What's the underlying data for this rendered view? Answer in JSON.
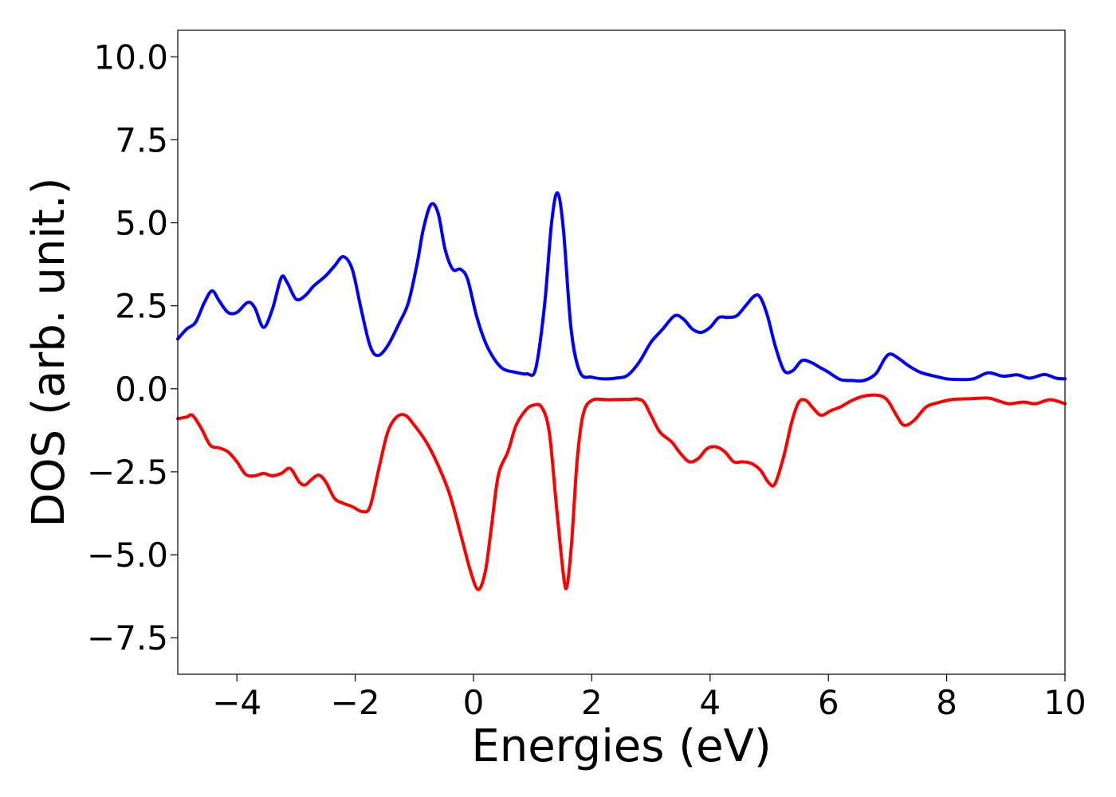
{
  "chart_data": {
    "type": "line",
    "title": "",
    "xlabel": "Energies (eV)",
    "ylabel": "DOS (arb. unit.)",
    "xlim": [
      -5,
      10
    ],
    "ylim": [
      -8.6,
      10.8
    ],
    "grid": false,
    "legend": "none",
    "x_ticks": [
      -4,
      -2,
      0,
      2,
      4,
      6,
      8,
      10
    ],
    "x_tick_labels": [
      "−4",
      "−2",
      "0",
      "2",
      "4",
      "6",
      "8",
      "10"
    ],
    "y_ticks": [
      10.0,
      7.5,
      5.0,
      2.5,
      0.0,
      -2.5,
      -5.0,
      -7.5
    ],
    "y_tick_labels": [
      "10.0",
      "7.5",
      "5.0",
      "2.5",
      "0.0",
      "−2.5",
      "−5.0",
      "−7.5"
    ],
    "series": [
      {
        "color": "#0000ff",
        "points": [
          [
            -5.0,
            1.5
          ],
          [
            -4.85,
            1.8
          ],
          [
            -4.7,
            2.0
          ],
          [
            -4.55,
            2.6
          ],
          [
            -4.42,
            2.95
          ],
          [
            -4.3,
            2.65
          ],
          [
            -4.15,
            2.3
          ],
          [
            -4.0,
            2.3
          ],
          [
            -3.82,
            2.6
          ],
          [
            -3.7,
            2.45
          ],
          [
            -3.55,
            1.85
          ],
          [
            -3.4,
            2.4
          ],
          [
            -3.25,
            3.35
          ],
          [
            -3.15,
            3.2
          ],
          [
            -3.0,
            2.7
          ],
          [
            -2.85,
            2.8
          ],
          [
            -2.7,
            3.1
          ],
          [
            -2.5,
            3.4
          ],
          [
            -2.35,
            3.7
          ],
          [
            -2.2,
            3.98
          ],
          [
            -2.05,
            3.6
          ],
          [
            -1.9,
            2.4
          ],
          [
            -1.75,
            1.3
          ],
          [
            -1.62,
            1.0
          ],
          [
            -1.45,
            1.3
          ],
          [
            -1.25,
            2.0
          ],
          [
            -1.1,
            2.6
          ],
          [
            -0.95,
            3.8
          ],
          [
            -0.85,
            4.8
          ],
          [
            -0.72,
            5.55
          ],
          [
            -0.6,
            5.3
          ],
          [
            -0.48,
            4.2
          ],
          [
            -0.35,
            3.6
          ],
          [
            -0.22,
            3.6
          ],
          [
            -0.1,
            3.3
          ],
          [
            0.05,
            2.2
          ],
          [
            0.2,
            1.4
          ],
          [
            0.35,
            0.9
          ],
          [
            0.5,
            0.6
          ],
          [
            0.7,
            0.5
          ],
          [
            0.9,
            0.45
          ],
          [
            1.05,
            0.6
          ],
          [
            1.2,
            2.5
          ],
          [
            1.32,
            5.0
          ],
          [
            1.42,
            5.9
          ],
          [
            1.52,
            4.8
          ],
          [
            1.65,
            1.8
          ],
          [
            1.8,
            0.5
          ],
          [
            2.0,
            0.35
          ],
          [
            2.2,
            0.3
          ],
          [
            2.4,
            0.32
          ],
          [
            2.6,
            0.4
          ],
          [
            2.8,
            0.8
          ],
          [
            3.0,
            1.4
          ],
          [
            3.2,
            1.8
          ],
          [
            3.4,
            2.2
          ],
          [
            3.55,
            2.1
          ],
          [
            3.7,
            1.8
          ],
          [
            3.85,
            1.7
          ],
          [
            4.0,
            1.85
          ],
          [
            4.15,
            2.15
          ],
          [
            4.3,
            2.15
          ],
          [
            4.45,
            2.2
          ],
          [
            4.6,
            2.5
          ],
          [
            4.75,
            2.8
          ],
          [
            4.85,
            2.75
          ],
          [
            4.97,
            2.2
          ],
          [
            5.1,
            1.3
          ],
          [
            5.25,
            0.55
          ],
          [
            5.4,
            0.55
          ],
          [
            5.55,
            0.85
          ],
          [
            5.7,
            0.8
          ],
          [
            5.85,
            0.65
          ],
          [
            6.0,
            0.5
          ],
          [
            6.2,
            0.28
          ],
          [
            6.4,
            0.25
          ],
          [
            6.6,
            0.25
          ],
          [
            6.8,
            0.45
          ],
          [
            6.95,
            0.9
          ],
          [
            7.05,
            1.05
          ],
          [
            7.2,
            0.9
          ],
          [
            7.35,
            0.7
          ],
          [
            7.55,
            0.5
          ],
          [
            7.75,
            0.4
          ],
          [
            8.0,
            0.3
          ],
          [
            8.2,
            0.28
          ],
          [
            8.45,
            0.3
          ],
          [
            8.7,
            0.48
          ],
          [
            8.95,
            0.38
          ],
          [
            9.2,
            0.42
          ],
          [
            9.4,
            0.32
          ],
          [
            9.65,
            0.43
          ],
          [
            9.85,
            0.32
          ],
          [
            10.0,
            0.3
          ]
        ]
      },
      {
        "color": "#ff0000",
        "points": [
          [
            -5.0,
            -0.9
          ],
          [
            -4.85,
            -0.85
          ],
          [
            -4.75,
            -0.8
          ],
          [
            -4.6,
            -1.2
          ],
          [
            -4.45,
            -1.7
          ],
          [
            -4.3,
            -1.78
          ],
          [
            -4.15,
            -1.9
          ],
          [
            -4.0,
            -2.2
          ],
          [
            -3.85,
            -2.58
          ],
          [
            -3.7,
            -2.62
          ],
          [
            -3.55,
            -2.55
          ],
          [
            -3.4,
            -2.62
          ],
          [
            -3.25,
            -2.55
          ],
          [
            -3.1,
            -2.4
          ],
          [
            -2.95,
            -2.8
          ],
          [
            -2.85,
            -2.9
          ],
          [
            -2.75,
            -2.75
          ],
          [
            -2.62,
            -2.6
          ],
          [
            -2.5,
            -2.8
          ],
          [
            -2.35,
            -3.3
          ],
          [
            -2.2,
            -3.45
          ],
          [
            -2.05,
            -3.55
          ],
          [
            -1.88,
            -3.7
          ],
          [
            -1.75,
            -3.55
          ],
          [
            -1.6,
            -2.4
          ],
          [
            -1.45,
            -1.3
          ],
          [
            -1.3,
            -0.85
          ],
          [
            -1.15,
            -0.8
          ],
          [
            -1.0,
            -1.1
          ],
          [
            -0.8,
            -1.6
          ],
          [
            -0.6,
            -2.3
          ],
          [
            -0.4,
            -3.2
          ],
          [
            -0.2,
            -4.5
          ],
          [
            -0.05,
            -5.5
          ],
          [
            0.08,
            -6.05
          ],
          [
            0.2,
            -5.5
          ],
          [
            0.3,
            -4.2
          ],
          [
            0.42,
            -2.6
          ],
          [
            0.58,
            -1.9
          ],
          [
            0.72,
            -1.1
          ],
          [
            0.88,
            -0.65
          ],
          [
            1.0,
            -0.5
          ],
          [
            1.15,
            -0.55
          ],
          [
            1.28,
            -1.3
          ],
          [
            1.4,
            -3.5
          ],
          [
            1.52,
            -5.6
          ],
          [
            1.58,
            -5.95
          ],
          [
            1.66,
            -4.6
          ],
          [
            1.75,
            -2.2
          ],
          [
            1.85,
            -0.8
          ],
          [
            2.0,
            -0.35
          ],
          [
            2.3,
            -0.33
          ],
          [
            2.6,
            -0.32
          ],
          [
            2.85,
            -0.35
          ],
          [
            3.0,
            -0.8
          ],
          [
            3.15,
            -1.3
          ],
          [
            3.35,
            -1.6
          ],
          [
            3.5,
            -1.95
          ],
          [
            3.65,
            -2.2
          ],
          [
            3.8,
            -2.1
          ],
          [
            3.95,
            -1.8
          ],
          [
            4.1,
            -1.75
          ],
          [
            4.25,
            -1.9
          ],
          [
            4.4,
            -2.2
          ],
          [
            4.55,
            -2.2
          ],
          [
            4.7,
            -2.25
          ],
          [
            4.85,
            -2.45
          ],
          [
            5.0,
            -2.85
          ],
          [
            5.1,
            -2.85
          ],
          [
            5.25,
            -2.0
          ],
          [
            5.38,
            -1.0
          ],
          [
            5.5,
            -0.4
          ],
          [
            5.62,
            -0.35
          ],
          [
            5.75,
            -0.6
          ],
          [
            5.88,
            -0.8
          ],
          [
            6.05,
            -0.65
          ],
          [
            6.2,
            -0.55
          ],
          [
            6.4,
            -0.35
          ],
          [
            6.6,
            -0.22
          ],
          [
            6.85,
            -0.2
          ],
          [
            7.0,
            -0.35
          ],
          [
            7.15,
            -0.8
          ],
          [
            7.28,
            -1.1
          ],
          [
            7.45,
            -0.95
          ],
          [
            7.65,
            -0.55
          ],
          [
            7.85,
            -0.42
          ],
          [
            8.1,
            -0.32
          ],
          [
            8.4,
            -0.3
          ],
          [
            8.7,
            -0.28
          ],
          [
            8.85,
            -0.35
          ],
          [
            9.05,
            -0.45
          ],
          [
            9.3,
            -0.4
          ],
          [
            9.5,
            -0.45
          ],
          [
            9.75,
            -0.33
          ],
          [
            10.0,
            -0.45
          ]
        ]
      }
    ]
  }
}
